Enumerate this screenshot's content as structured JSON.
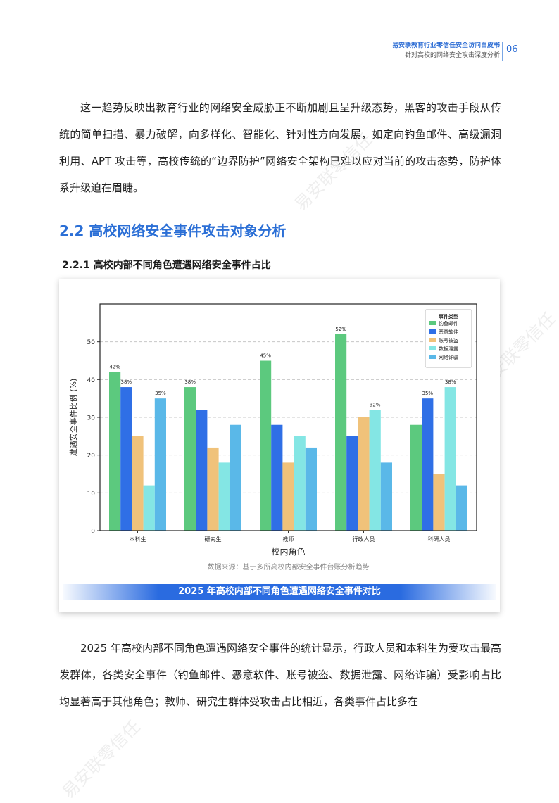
{
  "header": {
    "title": "易安联教育行业零信任安全访问白皮书",
    "subtitle": "针对高校的网络安全攻击深度分析",
    "page_number": "06"
  },
  "paragraph1": "这一趋势反映出教育行业的网络安全威胁正不断加剧且呈升级态势，黑客的攻击手段从传统的简单扫描、暴力破解，向多样化、智能化、针对性方向发展，如定向钓鱼邮件、高级漏洞利用、APT 攻击等，高校传统的“边界防护”网络安全架构已难以应对当前的攻击态势，防护体系升级迫在眉睫。",
  "section_title": "2.2 高校网络安全事件攻击对象分析",
  "subsection_title": "2.2.1  高校内部不同角色遭遇网络安全事件占比",
  "chart_data": {
    "type": "bar",
    "categories": [
      "本科生",
      "研究生",
      "教师",
      "行政人员",
      "科研人员"
    ],
    "series": [
      {
        "name": "钓鱼邮件",
        "color": "#5cc97e",
        "values": [
          42,
          38,
          45,
          52,
          28
        ]
      },
      {
        "name": "恶意软件",
        "color": "#2f6fe6",
        "values": [
          38,
          32,
          28,
          25,
          35
        ]
      },
      {
        "name": "账号被盗",
        "color": "#f0c27a",
        "values": [
          25,
          22,
          18,
          30,
          15
        ]
      },
      {
        "name": "数据泄露",
        "color": "#84e6e4",
        "values": [
          12,
          18,
          25,
          32,
          38
        ]
      },
      {
        "name": "网络诈骗",
        "color": "#5ab8e8",
        "values": [
          35,
          28,
          22,
          18,
          12
        ]
      }
    ],
    "data_labels": [
      {
        "category_index": 0,
        "series_index": 0,
        "text": "42%"
      },
      {
        "category_index": 0,
        "series_index": 1,
        "text": "38%"
      },
      {
        "category_index": 0,
        "series_index": 4,
        "text": "35%"
      },
      {
        "category_index": 1,
        "series_index": 0,
        "text": "38%"
      },
      {
        "category_index": 2,
        "series_index": 0,
        "text": "45%"
      },
      {
        "category_index": 3,
        "series_index": 0,
        "text": "52%"
      },
      {
        "category_index": 3,
        "series_index": 3,
        "text": "32%"
      },
      {
        "category_index": 4,
        "series_index": 1,
        "text": "35%"
      },
      {
        "category_index": 4,
        "series_index": 3,
        "text": "38%"
      }
    ],
    "xlabel": "校内角色",
    "ylabel": "遭遇安全事件比例 (%)",
    "ylim": [
      0,
      60
    ],
    "yticks": [
      0,
      10,
      20,
      30,
      40,
      50
    ],
    "grid": true,
    "legend_title": "事件类型",
    "legend_position": "top-right",
    "source": "数据来源：基于多所高校内部安全事件台账分析趋势",
    "caption": "2025 年高校内部不同角色遭遇网络安全事件对比"
  },
  "paragraph2": "2025 年高校内部不同角色遭遇网络安全事件的统计显示，行政人员和本科生为受攻击最高发群体，各类安全事件（钓鱼邮件、恶意软件、账号被盗、数据泄露、网络诈骗）受影响占比均显著高于其他角色；教师、研究生群体受攻击占比相近，各类事件占比多在",
  "watermark": "易安联零信任"
}
